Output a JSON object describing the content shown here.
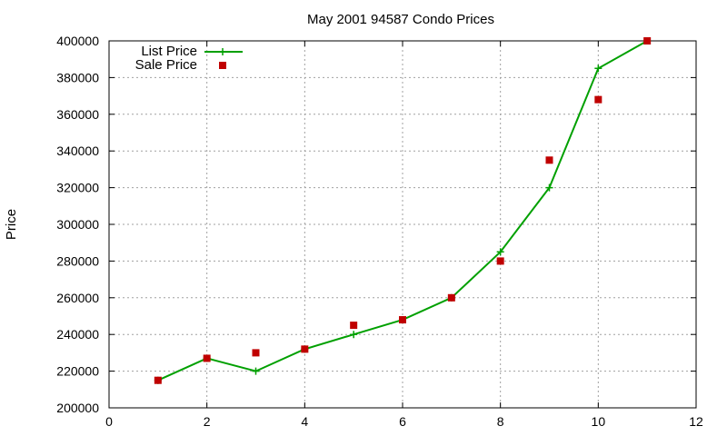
{
  "chart_data": {
    "type": "line",
    "title": "May 2001 94587 Condo Prices",
    "xlabel": "",
    "ylabel": "Price",
    "xlim": [
      0,
      12
    ],
    "ylim": [
      200000,
      400000
    ],
    "x_ticks": [
      0,
      2,
      4,
      6,
      8,
      10,
      12
    ],
    "y_ticks": [
      200000,
      220000,
      240000,
      260000,
      280000,
      300000,
      320000,
      340000,
      360000,
      380000,
      400000
    ],
    "grid": true,
    "legend_position": "top-left",
    "series": [
      {
        "name": "List Price",
        "style": "line-with-plus-markers",
        "color": "#00a000",
        "points": [
          {
            "x": 1,
            "y": 215000
          },
          {
            "x": 2,
            "y": 227000
          },
          {
            "x": 3,
            "y": 220000
          },
          {
            "x": 4,
            "y": 232000
          },
          {
            "x": 5,
            "y": 240000
          },
          {
            "x": 6,
            "y": 248000
          },
          {
            "x": 7,
            "y": 260000
          },
          {
            "x": 8,
            "y": 285000
          },
          {
            "x": 9,
            "y": 320000
          },
          {
            "x": 10,
            "y": 385000
          },
          {
            "x": 11,
            "y": 400000
          }
        ]
      },
      {
        "name": "Sale Price",
        "style": "square-markers",
        "color": "#c00000",
        "points": [
          {
            "x": 1,
            "y": 215000
          },
          {
            "x": 2,
            "y": 227000
          },
          {
            "x": 3,
            "y": 230000
          },
          {
            "x": 4,
            "y": 232000
          },
          {
            "x": 5,
            "y": 245000
          },
          {
            "x": 6,
            "y": 248000
          },
          {
            "x": 7,
            "y": 260000
          },
          {
            "x": 8,
            "y": 280000
          },
          {
            "x": 9,
            "y": 335000
          },
          {
            "x": 10,
            "y": 368000
          },
          {
            "x": 11,
            "y": 400000
          }
        ]
      }
    ]
  }
}
